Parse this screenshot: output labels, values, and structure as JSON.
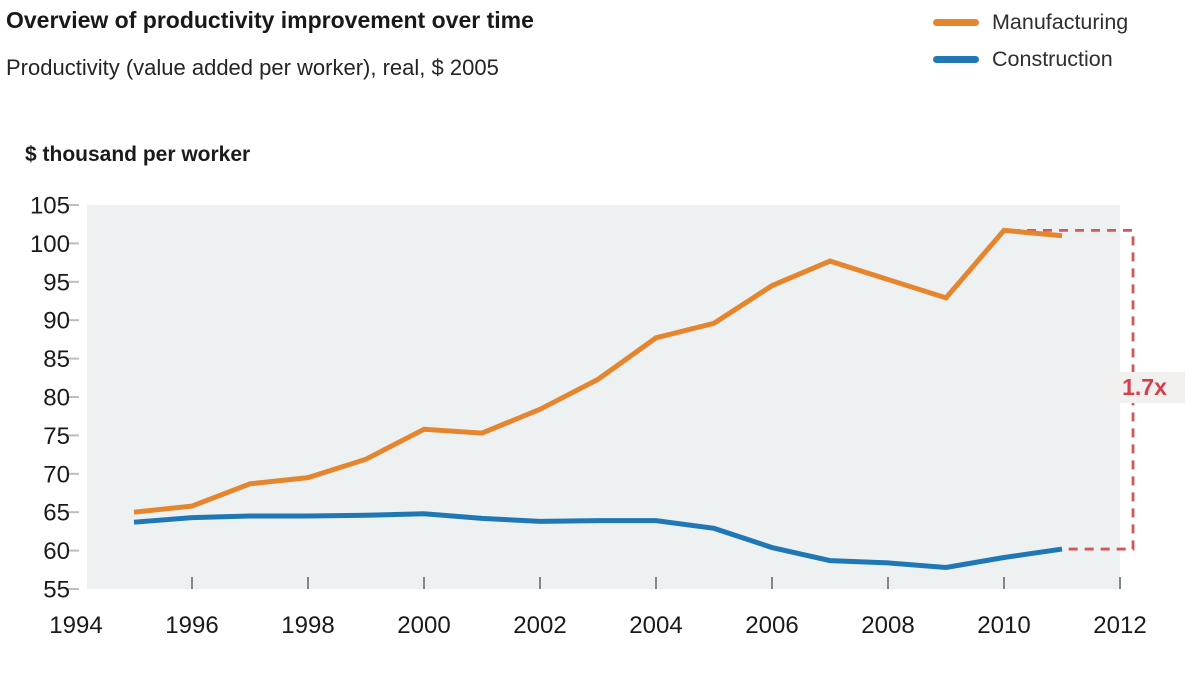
{
  "header": {
    "title": "Overview of productivity improvement over time",
    "subtitle": "Productivity (value added per worker), real, $ 2005"
  },
  "legend": {
    "position": "top-right",
    "items": [
      {
        "label": "Manufacturing",
        "color": "#E5862F"
      },
      {
        "label": "Construction",
        "color": "#1F78B5"
      }
    ]
  },
  "chart_data": {
    "type": "line",
    "title": "Overview of productivity improvement over time",
    "subtitle": "Productivity (value added per worker), real, $ 2005",
    "ylabel": "$ thousand per worker",
    "xlabel": "",
    "grid": false,
    "plot_background": "#EEF1F2",
    "xlim": [
      1994,
      2012
    ],
    "ylim": [
      55,
      105
    ],
    "x_ticks": [
      1994,
      1996,
      1998,
      2000,
      2002,
      2004,
      2006,
      2008,
      2010,
      2012
    ],
    "y_ticks": [
      105,
      100,
      95,
      90,
      85,
      80,
      75,
      70,
      65,
      60,
      55
    ],
    "x": [
      1995,
      1996,
      1997,
      1998,
      1999,
      2000,
      2001,
      2002,
      2003,
      2004,
      2005,
      2006,
      2007,
      2008,
      2009,
      2010,
      2011
    ],
    "series": [
      {
        "name": "Manufacturing",
        "color": "#E5862F",
        "values": [
          65.0,
          65.8,
          68.7,
          69.5,
          71.9,
          75.8,
          75.3,
          78.4,
          82.3,
          87.7,
          89.6,
          94.5,
          97.7,
          95.3,
          92.9,
          101.7,
          101.0
        ]
      },
      {
        "name": "Construction",
        "color": "#1F78B5",
        "values": [
          63.7,
          64.3,
          64.5,
          64.5,
          64.6,
          64.8,
          64.2,
          63.8,
          63.9,
          63.9,
          62.9,
          60.4,
          58.7,
          58.4,
          57.8,
          59.1,
          60.2
        ]
      }
    ],
    "annotation": {
      "label": "1.7x",
      "text_color": "#D6404E",
      "line_color": "#D4555A",
      "background": "#F1F0EE",
      "top_value": 101.7,
      "bottom_value": 60.2
    }
  }
}
